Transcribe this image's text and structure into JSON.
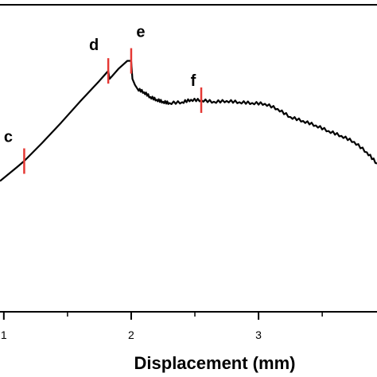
{
  "chart_data": {
    "type": "line",
    "title": "",
    "xlabel": "Displacement (mm)",
    "ylabel": "",
    "xlim": [
      0.97,
      3.93
    ],
    "ylim": [
      -3.26,
      4.4
    ],
    "x_ticks": [
      1,
      2,
      3
    ],
    "x_tick_labels": [
      "1",
      "2",
      "3"
    ],
    "series": [
      {
        "color": "#000000",
        "x": [
          0.97,
          1.1,
          1.16,
          1.3,
          1.45,
          1.6,
          1.75,
          1.82,
          1.83,
          1.85,
          1.9,
          1.97,
          2.0,
          2.01,
          2.03,
          2.05,
          2.1,
          2.15,
          2.2,
          2.25,
          2.3,
          2.4,
          2.47,
          2.55,
          2.65,
          2.75,
          2.85,
          2.95,
          3.05,
          3.15,
          3.25,
          3.35,
          3.45,
          3.55,
          3.65,
          3.75,
          3.85,
          3.93
        ],
        "y": [
          0.0,
          0.34,
          0.5,
          0.95,
          1.46,
          1.99,
          2.5,
          2.75,
          2.55,
          2.62,
          2.8,
          3.0,
          3.0,
          2.55,
          2.4,
          2.3,
          2.22,
          2.1,
          2.03,
          1.98,
          1.95,
          1.97,
          2.03,
          2.02,
          1.98,
          2.0,
          1.97,
          1.95,
          1.93,
          1.8,
          1.6,
          1.5,
          1.39,
          1.25,
          1.13,
          0.98,
          0.72,
          0.44
        ]
      }
    ],
    "annotations": [
      {
        "label": "c",
        "x": 1.16,
        "y": 0.5,
        "color": "#e53935"
      },
      {
        "label": "d",
        "x": 1.82,
        "y": 2.75,
        "color": "#e53935"
      },
      {
        "label": "e",
        "x": 2.0,
        "y": 3.0,
        "color": "#e53935"
      },
      {
        "label": "f",
        "x": 2.55,
        "y": 2.02,
        "color": "#e53935"
      }
    ],
    "grid": false,
    "legend": "none"
  }
}
